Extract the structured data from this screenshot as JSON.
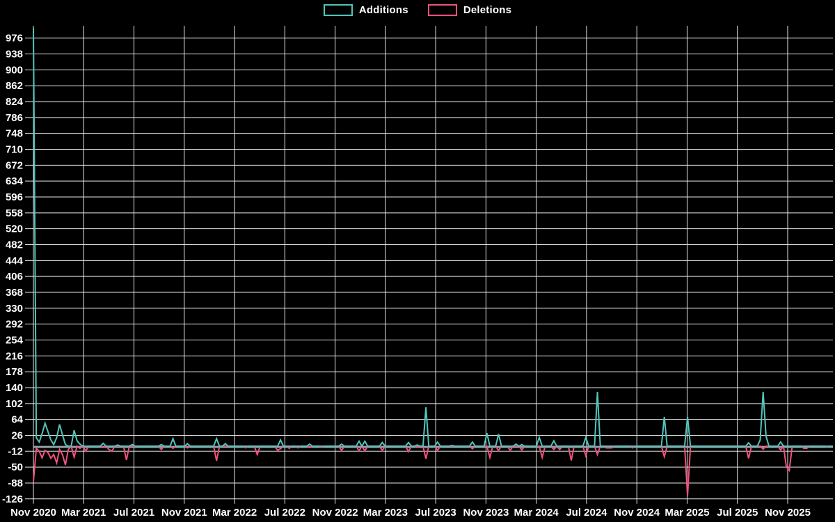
{
  "legend": {
    "items": [
      {
        "label": "Additions",
        "color": "#52c5bb"
      },
      {
        "label": "Deletions",
        "color": "#f2527d"
      }
    ]
  },
  "chart_data": {
    "type": "line",
    "title": "",
    "xlabel": "",
    "ylabel": "",
    "background_color": "#000000",
    "grid_color": "#e8e8e8",
    "zero_line_color": "#8fa2ab",
    "text_color": "#ffffff",
    "legend_position": "top-center",
    "grid": true,
    "x_axis": {
      "unit": "week",
      "start_label": "Nov 2020",
      "tick_labels": [
        "Nov 2020",
        "Mar 2021",
        "Jul 2021",
        "Nov 2021",
        "Mar 2022",
        "Jul 2022",
        "Nov 2022",
        "Mar 2023",
        "Jul 2023",
        "Nov 2023",
        "Mar 2024",
        "Jul 2024",
        "Nov 2024",
        "Mar 2025",
        "Jul 2025",
        "Nov 2025"
      ]
    },
    "y_axis": {
      "min": -126,
      "max": 976,
      "step": 38,
      "tick_labels": [
        "976",
        "938",
        "900",
        "862",
        "824",
        "786",
        "748",
        "710",
        "672",
        "634",
        "596",
        "558",
        "520",
        "482",
        "444",
        "406",
        "368",
        "330",
        "292",
        "254",
        "216",
        "178",
        "140",
        "102",
        "64",
        "26",
        "-12",
        "-50",
        "-88",
        "-126"
      ]
    },
    "n_points": 276,
    "default_value": 0,
    "series": [
      {
        "name": "Additions",
        "color": "#52c5bb",
        "points_sparse": {
          "0": 1000,
          "1": 20,
          "2": 10,
          "3": 30,
          "4": 55,
          "5": 35,
          "6": 15,
          "7": 4,
          "8": 20,
          "9": 52,
          "10": 27,
          "11": 4,
          "14": 38,
          "15": 13,
          "16": 5,
          "24": 7,
          "29": 3,
          "34": 4,
          "44": 4,
          "48": 18,
          "53": 6,
          "63": 18,
          "66": 6,
          "85": 15,
          "95": 5,
          "106": 5,
          "112": 12,
          "114": 12,
          "120": 9,
          "129": 9,
          "132": 3,
          "135": 93,
          "139": 10,
          "144": 2,
          "151": 10,
          "156": 31,
          "160": 29,
          "166": 5,
          "168": 4,
          "174": 21,
          "179": 13,
          "190": 21,
          "194": 130,
          "217": 70,
          "225": 70,
          "246": 8,
          "250": 15,
          "251": 130,
          "252": 24,
          "257": 10
        }
      },
      {
        "name": "Deletions",
        "color": "#f2527d",
        "points_sparse": {
          "0": -85,
          "1": -5,
          "2": -12,
          "3": -28,
          "4": -10,
          "5": -15,
          "6": -29,
          "7": -20,
          "8": -40,
          "9": -8,
          "10": -20,
          "11": -45,
          "12": -8,
          "14": -26,
          "16": -5,
          "18": -12,
          "24": -3,
          "26": -8,
          "27": -12,
          "32": -33,
          "44": -8,
          "48": -5,
          "53": -4,
          "63": -35,
          "73": -4,
          "77": -20,
          "84": -10,
          "85": -6,
          "88": -5,
          "91": -4,
          "95": -3,
          "99": -3,
          "106": -10,
          "112": -11,
          "114": -11,
          "120": -10,
          "129": -13,
          "132": -3,
          "135": -30,
          "139": -10,
          "151": -6,
          "157": -27,
          "160": -10,
          "164": -10,
          "168": -9,
          "175": -27,
          "179": -8,
          "181": -8,
          "185": -34,
          "190": -23,
          "194": -20,
          "197": -4,
          "198": -4,
          "199": -4,
          "206": -4,
          "217": -25,
          "225": -118,
          "246": -29,
          "251": -7,
          "257": -9,
          "259": -50,
          "260": -58,
          "265": -5,
          "266": -5,
          "273": -2
        }
      }
    ]
  }
}
